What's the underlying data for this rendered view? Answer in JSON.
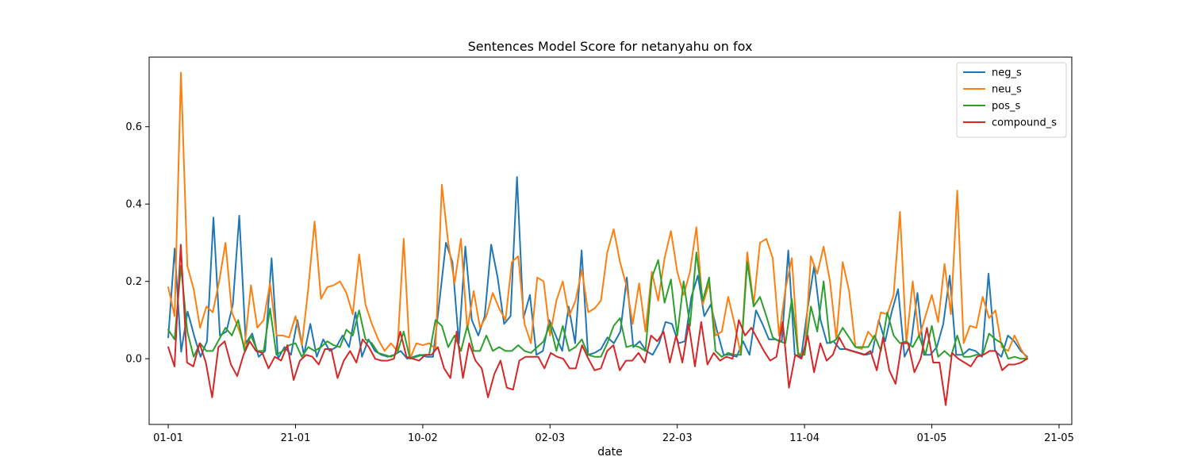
{
  "chart_data": {
    "type": "line",
    "title": "Sentences Model Score for netanyahu on fox",
    "xlabel": "date",
    "ylabel": "",
    "x_start": "2021-01-01",
    "x_end": "2021-05-16",
    "xlim": [
      "2020-12-29",
      "2021-05-23"
    ],
    "ylim": [
      -0.17,
      0.78
    ],
    "x_ticks": [
      {
        "date": "2021-01-01",
        "label": "01-01"
      },
      {
        "date": "2021-01-21",
        "label": "21-01"
      },
      {
        "date": "2021-02-10",
        "label": "10-02"
      },
      {
        "date": "2021-03-02",
        "label": "02-03"
      },
      {
        "date": "2021-03-22",
        "label": "22-03"
      },
      {
        "date": "2021-04-11",
        "label": "11-04"
      },
      {
        "date": "2021-05-01",
        "label": "01-05"
      },
      {
        "date": "2021-05-21",
        "label": "21-05"
      }
    ],
    "y_ticks": [
      {
        "value": 0.0,
        "label": "0.0"
      },
      {
        "value": 0.2,
        "label": "0.2"
      },
      {
        "value": 0.4,
        "label": "0.4"
      },
      {
        "value": 0.6,
        "label": "0.6"
      }
    ],
    "legend_position": "top-right",
    "grid": false,
    "series": [
      {
        "name": "neg_s",
        "color": "#1f77b4",
        "values": [
          0.055,
          0.285,
          0.018,
          0.122,
          0.06,
          0.005,
          0.045,
          0.365,
          0.06,
          0.07,
          0.14,
          0.37,
          0.04,
          0.065,
          0.005,
          0.02,
          0.26,
          0.0,
          0.03,
          0.01,
          0.1,
          0.01,
          0.09,
          0.005,
          0.05,
          0.02,
          0.03,
          0.06,
          0.03,
          0.12,
          0.005,
          0.05,
          0.02,
          0.01,
          0.005,
          0.01,
          0.02,
          0.0,
          0.005,
          0.01,
          0.005,
          0.005,
          0.15,
          0.3,
          0.25,
          0.04,
          0.29,
          0.1,
          0.06,
          0.11,
          0.295,
          0.21,
          0.09,
          0.11,
          0.47,
          0.105,
          0.165,
          0.01,
          0.02,
          0.1,
          0.06,
          0.02,
          0.135,
          0.04,
          0.28,
          0.01,
          0.015,
          0.025,
          0.055,
          0.04,
          0.07,
          0.21,
          0.03,
          0.045,
          0.02,
          0.01,
          0.04,
          0.095,
          0.09,
          0.04,
          0.045,
          0.16,
          0.215,
          0.11,
          0.14,
          0.07,
          0.01,
          0.01,
          0.005,
          0.045,
          0.01,
          0.125,
          0.09,
          0.05,
          0.05,
          0.045,
          0.28,
          0.01,
          0.005,
          0.13,
          0.24,
          0.1,
          0.04,
          0.045,
          0.025,
          0.025,
          0.02,
          0.015,
          0.01,
          0.015,
          0.1,
          0.045,
          0.12,
          0.18,
          0.005,
          0.04,
          0.17,
          0.01,
          0.01,
          0.03,
          0.09,
          0.215,
          0.01,
          0.01,
          0.025,
          0.02,
          0.005,
          0.22,
          0.02,
          0.005,
          0.06,
          0.045,
          0.02,
          0.005
        ]
      },
      {
        "name": "neu_s",
        "color": "#ff7f0e",
        "values": [
          0.185,
          0.11,
          0.74,
          0.24,
          0.18,
          0.08,
          0.135,
          0.12,
          0.2,
          0.3,
          0.12,
          0.08,
          0.03,
          0.19,
          0.08,
          0.1,
          0.195,
          0.06,
          0.06,
          0.055,
          0.11,
          0.035,
          0.18,
          0.355,
          0.155,
          0.185,
          0.19,
          0.2,
          0.17,
          0.115,
          0.27,
          0.14,
          0.09,
          0.05,
          0.02,
          0.04,
          0.02,
          0.31,
          0.0,
          0.04,
          0.035,
          0.04,
          0.025,
          0.45,
          0.3,
          0.195,
          0.31,
          0.075,
          0.175,
          0.08,
          0.11,
          0.17,
          0.13,
          0.1,
          0.25,
          0.265,
          0.09,
          0.04,
          0.21,
          0.2,
          0.06,
          0.15,
          0.2,
          0.11,
          0.15,
          0.23,
          0.12,
          0.13,
          0.15,
          0.275,
          0.335,
          0.25,
          0.19,
          0.09,
          0.195,
          0.07,
          0.225,
          0.15,
          0.26,
          0.33,
          0.225,
          0.165,
          0.225,
          0.34,
          0.14,
          0.195,
          0.06,
          0.07,
          0.16,
          0.09,
          0.01,
          0.275,
          0.14,
          0.3,
          0.31,
          0.26,
          0.06,
          0.18,
          0.26,
          0.015,
          0.01,
          0.265,
          0.22,
          0.29,
          0.2,
          0.05,
          0.25,
          0.175,
          0.03,
          0.025,
          0.07,
          0.05,
          0.12,
          0.115,
          0.165,
          0.38,
          0.04,
          0.2,
          0.055,
          0.11,
          0.165,
          0.095,
          0.245,
          0.115,
          0.435,
          0.04,
          0.085,
          0.08,
          0.16,
          0.105,
          0.125,
          0.03,
          0.02,
          0.06,
          0.025,
          0.0
        ]
      },
      {
        "name": "pos_s",
        "color": "#2ca02c",
        "values": [
          0.075,
          0.05,
          0.24,
          0.07,
          0.005,
          0.04,
          0.02,
          0.02,
          0.05,
          0.08,
          0.06,
          0.1,
          0.02,
          0.06,
          0.02,
          0.02,
          0.13,
          0.01,
          0.02,
          0.035,
          0.04,
          0.005,
          0.03,
          0.02,
          0.03,
          0.045,
          0.035,
          0.03,
          0.075,
          0.06,
          0.125,
          0.05,
          0.04,
          0.015,
          0.01,
          0.005,
          0.015,
          0.07,
          0.0,
          0.005,
          0.01,
          0.01,
          0.1,
          0.085,
          0.03,
          0.06,
          0.02,
          0.085,
          0.02,
          0.02,
          0.06,
          0.02,
          0.03,
          0.02,
          0.02,
          0.035,
          0.02,
          0.015,
          0.03,
          0.045,
          0.09,
          0.02,
          0.085,
          0.02,
          0.03,
          0.05,
          0.01,
          0.005,
          0.005,
          0.04,
          0.085,
          0.105,
          0.03,
          0.035,
          0.03,
          0.02,
          0.21,
          0.255,
          0.145,
          0.205,
          0.06,
          0.2,
          0.085,
          0.275,
          0.15,
          0.21,
          0.02,
          0.005,
          0.015,
          0.01,
          0.01,
          0.25,
          0.135,
          0.16,
          0.11,
          0.055,
          0.045,
          0.04,
          0.155,
          0.01,
          0.01,
          0.135,
          0.07,
          0.2,
          0.04,
          0.05,
          0.08,
          0.055,
          0.03,
          0.03,
          0.03,
          0.06,
          0.02,
          0.12,
          0.06,
          0.04,
          0.045,
          0.03,
          0.06,
          0.01,
          0.085,
          0.005,
          0.02,
          0.005,
          0.06,
          0.005,
          0.005,
          0.01,
          0.01,
          0.065,
          0.05,
          0.04,
          0.0,
          0.005,
          0.0,
          0.0
        ]
      },
      {
        "name": "compound_s",
        "color": "#d62728",
        "values": [
          0.03,
          -0.02,
          0.295,
          -0.01,
          -0.02,
          0.04,
          -0.01,
          -0.1,
          0.03,
          0.045,
          -0.015,
          -0.045,
          0.01,
          0.045,
          0.02,
          0.015,
          -0.025,
          0.005,
          -0.005,
          0.035,
          -0.055,
          -0.005,
          0.01,
          0.005,
          -0.015,
          0.025,
          0.025,
          -0.05,
          -0.005,
          0.02,
          -0.01,
          0.05,
          0.03,
          0.0,
          -0.005,
          -0.005,
          0.0,
          0.07,
          0.005,
          0.0,
          -0.005,
          0.01,
          0.01,
          0.03,
          -0.025,
          -0.05,
          0.07,
          -0.05,
          0.04,
          -0.005,
          -0.025,
          -0.1,
          -0.04,
          -0.005,
          -0.075,
          -0.08,
          -0.005,
          0.005,
          0.005,
          0.005,
          -0.025,
          0.015,
          0.005,
          0.0,
          -0.025,
          -0.025,
          0.035,
          0.0,
          -0.03,
          -0.025,
          0.02,
          0.035,
          -0.03,
          -0.005,
          -0.005,
          0.015,
          -0.01,
          0.06,
          0.045,
          0.07,
          -0.01,
          0.06,
          -0.01,
          0.09,
          -0.02,
          0.095,
          -0.015,
          0.015,
          -0.005,
          0.005,
          0.0,
          0.1,
          0.06,
          0.08,
          0.05,
          0.02,
          -0.005,
          0.005,
          0.095,
          -0.075,
          0.01,
          0.0,
          0.06,
          -0.035,
          0.04,
          -0.005,
          0.01,
          0.055,
          0.025,
          0.02,
          0.015,
          0.01,
          0.02,
          -0.03,
          0.055,
          -0.03,
          -0.065,
          0.04,
          0.04,
          -0.035,
          0.0,
          0.08,
          -0.01,
          -0.01,
          -0.12,
          0.015,
          0.0,
          -0.01,
          -0.02,
          0.005,
          0.01,
          0.02,
          0.02,
          -0.03,
          -0.015,
          -0.015,
          -0.01,
          0.0
        ]
      }
    ]
  }
}
